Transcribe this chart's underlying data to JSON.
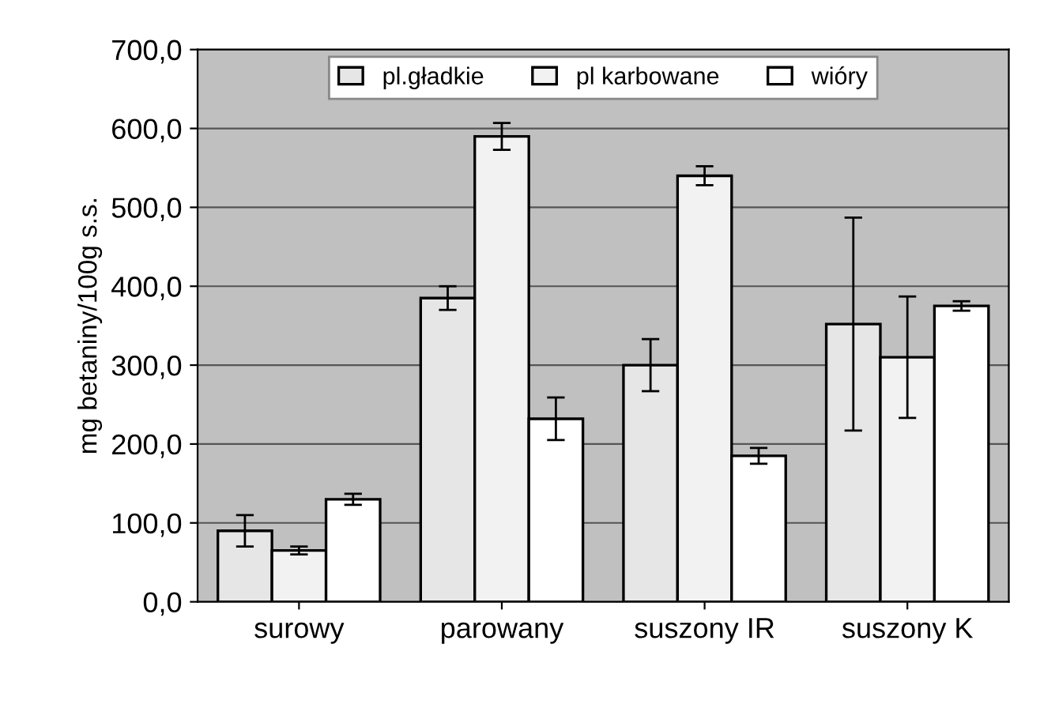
{
  "chart_data": {
    "type": "bar",
    "ylabel": "mg betaniny/100g s.s.",
    "categories": [
      "surowy",
      "parowany",
      "suszony IR",
      "suszony K"
    ],
    "series": [
      {
        "name": "pl.gładkie",
        "color": "#e6e6e6",
        "values": [
          90,
          385,
          300,
          352
        ],
        "errors": [
          20,
          15,
          33,
          135
        ]
      },
      {
        "name": "pl karbowane",
        "color": "#f2f2f2",
        "values": [
          65,
          590,
          540,
          310
        ],
        "errors": [
          5,
          17,
          12,
          77
        ]
      },
      {
        "name": "wióry",
        "color": "#ffffff",
        "values": [
          130,
          232,
          185,
          375
        ],
        "errors": [
          7,
          27,
          10,
          6
        ]
      }
    ],
    "ylim": [
      0,
      700
    ],
    "yticks": [
      {
        "value": 0,
        "label": "0,0"
      },
      {
        "value": 100,
        "label": "100,0"
      },
      {
        "value": 200,
        "label": "200,0"
      },
      {
        "value": 300,
        "label": "300,0"
      },
      {
        "value": 400,
        "label": "400,0"
      },
      {
        "value": 500,
        "label": "500,0"
      },
      {
        "value": 600,
        "label": "600,0"
      },
      {
        "value": 700,
        "label": "700,0"
      }
    ],
    "grid": "y",
    "legend": "top"
  }
}
